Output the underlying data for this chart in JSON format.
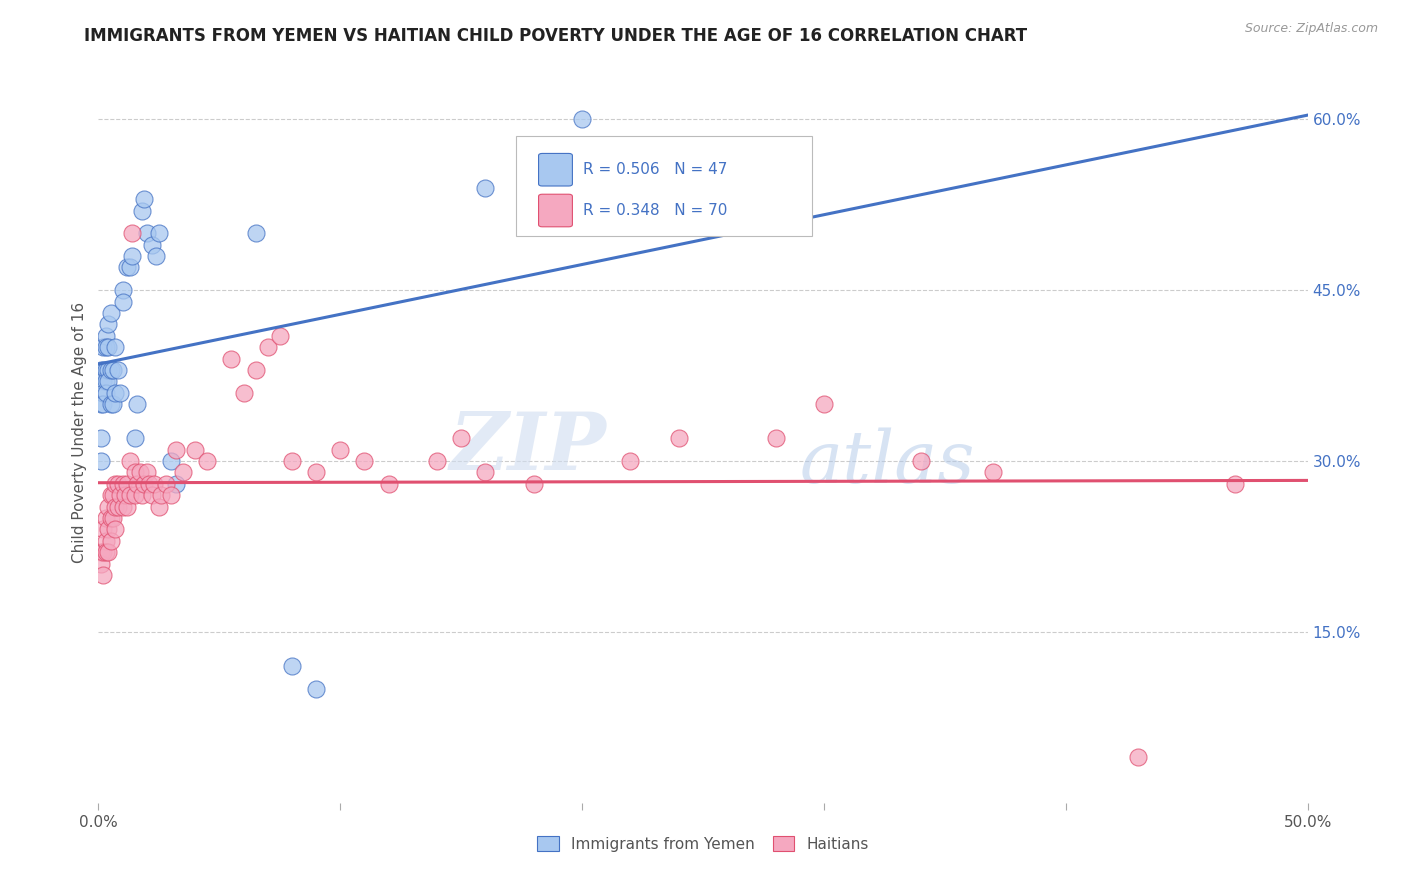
{
  "title": "IMMIGRANTS FROM YEMEN VS HAITIAN CHILD POVERTY UNDER THE AGE OF 16 CORRELATION CHART",
  "source": "Source: ZipAtlas.com",
  "ylabel": "Child Poverty Under the Age of 16",
  "right_yticks": [
    "60.0%",
    "45.0%",
    "30.0%",
    "15.0%"
  ],
  "right_ytick_vals": [
    0.6,
    0.45,
    0.3,
    0.15
  ],
  "legend_r1": "R = 0.506",
  "legend_n1": "N = 47",
  "legend_r2": "R = 0.348",
  "legend_n2": "N = 70",
  "blue_color": "#A8C8F0",
  "pink_color": "#F5A8C0",
  "blue_line_color": "#4472C4",
  "pink_line_color": "#E05070",
  "blue_scatter": [
    [
      0.001,
      0.38
    ],
    [
      0.001,
      0.35
    ],
    [
      0.001,
      0.32
    ],
    [
      0.001,
      0.3
    ],
    [
      0.002,
      0.4
    ],
    [
      0.002,
      0.38
    ],
    [
      0.002,
      0.37
    ],
    [
      0.002,
      0.36
    ],
    [
      0.002,
      0.35
    ],
    [
      0.003,
      0.41
    ],
    [
      0.003,
      0.4
    ],
    [
      0.003,
      0.38
    ],
    [
      0.003,
      0.37
    ],
    [
      0.003,
      0.36
    ],
    [
      0.004,
      0.42
    ],
    [
      0.004,
      0.4
    ],
    [
      0.004,
      0.38
    ],
    [
      0.004,
      0.37
    ],
    [
      0.005,
      0.43
    ],
    [
      0.005,
      0.38
    ],
    [
      0.005,
      0.35
    ],
    [
      0.006,
      0.38
    ],
    [
      0.006,
      0.35
    ],
    [
      0.007,
      0.4
    ],
    [
      0.007,
      0.36
    ],
    [
      0.008,
      0.38
    ],
    [
      0.009,
      0.36
    ],
    [
      0.01,
      0.45
    ],
    [
      0.01,
      0.44
    ],
    [
      0.012,
      0.47
    ],
    [
      0.013,
      0.47
    ],
    [
      0.014,
      0.48
    ],
    [
      0.015,
      0.32
    ],
    [
      0.016,
      0.35
    ],
    [
      0.018,
      0.52
    ],
    [
      0.019,
      0.53
    ],
    [
      0.02,
      0.5
    ],
    [
      0.022,
      0.49
    ],
    [
      0.024,
      0.48
    ],
    [
      0.025,
      0.5
    ],
    [
      0.03,
      0.3
    ],
    [
      0.032,
      0.28
    ],
    [
      0.065,
      0.5
    ],
    [
      0.08,
      0.12
    ],
    [
      0.09,
      0.1
    ],
    [
      0.16,
      0.54
    ],
    [
      0.2,
      0.6
    ]
  ],
  "pink_scatter": [
    [
      0.001,
      0.22
    ],
    [
      0.001,
      0.21
    ],
    [
      0.002,
      0.24
    ],
    [
      0.002,
      0.22
    ],
    [
      0.002,
      0.2
    ],
    [
      0.003,
      0.25
    ],
    [
      0.003,
      0.23
    ],
    [
      0.003,
      0.22
    ],
    [
      0.004,
      0.26
    ],
    [
      0.004,
      0.24
    ],
    [
      0.004,
      0.22
    ],
    [
      0.005,
      0.27
    ],
    [
      0.005,
      0.25
    ],
    [
      0.005,
      0.23
    ],
    [
      0.006,
      0.27
    ],
    [
      0.006,
      0.25
    ],
    [
      0.007,
      0.28
    ],
    [
      0.007,
      0.26
    ],
    [
      0.007,
      0.24
    ],
    [
      0.008,
      0.28
    ],
    [
      0.008,
      0.26
    ],
    [
      0.009,
      0.27
    ],
    [
      0.01,
      0.28
    ],
    [
      0.01,
      0.26
    ],
    [
      0.011,
      0.27
    ],
    [
      0.012,
      0.28
    ],
    [
      0.012,
      0.26
    ],
    [
      0.013,
      0.3
    ],
    [
      0.013,
      0.27
    ],
    [
      0.014,
      0.5
    ],
    [
      0.015,
      0.29
    ],
    [
      0.015,
      0.27
    ],
    [
      0.016,
      0.28
    ],
    [
      0.017,
      0.29
    ],
    [
      0.018,
      0.27
    ],
    [
      0.019,
      0.28
    ],
    [
      0.02,
      0.29
    ],
    [
      0.021,
      0.28
    ],
    [
      0.022,
      0.27
    ],
    [
      0.023,
      0.28
    ],
    [
      0.025,
      0.26
    ],
    [
      0.026,
      0.27
    ],
    [
      0.028,
      0.28
    ],
    [
      0.03,
      0.27
    ],
    [
      0.032,
      0.31
    ],
    [
      0.035,
      0.29
    ],
    [
      0.04,
      0.31
    ],
    [
      0.045,
      0.3
    ],
    [
      0.055,
      0.39
    ],
    [
      0.06,
      0.36
    ],
    [
      0.065,
      0.38
    ],
    [
      0.07,
      0.4
    ],
    [
      0.075,
      0.41
    ],
    [
      0.08,
      0.3
    ],
    [
      0.09,
      0.29
    ],
    [
      0.1,
      0.31
    ],
    [
      0.11,
      0.3
    ],
    [
      0.12,
      0.28
    ],
    [
      0.14,
      0.3
    ],
    [
      0.15,
      0.32
    ],
    [
      0.16,
      0.29
    ],
    [
      0.18,
      0.28
    ],
    [
      0.22,
      0.3
    ],
    [
      0.24,
      0.32
    ],
    [
      0.28,
      0.32
    ],
    [
      0.3,
      0.35
    ],
    [
      0.34,
      0.3
    ],
    [
      0.37,
      0.29
    ],
    [
      0.43,
      0.04
    ],
    [
      0.47,
      0.28
    ]
  ],
  "watermark_line1": "ZIP",
  "watermark_line2": "atlas",
  "xlim": [
    0.0,
    0.5
  ],
  "ylim": [
    0.0,
    0.65
  ],
  "grid_yticks": [
    0.15,
    0.3,
    0.45,
    0.6
  ]
}
